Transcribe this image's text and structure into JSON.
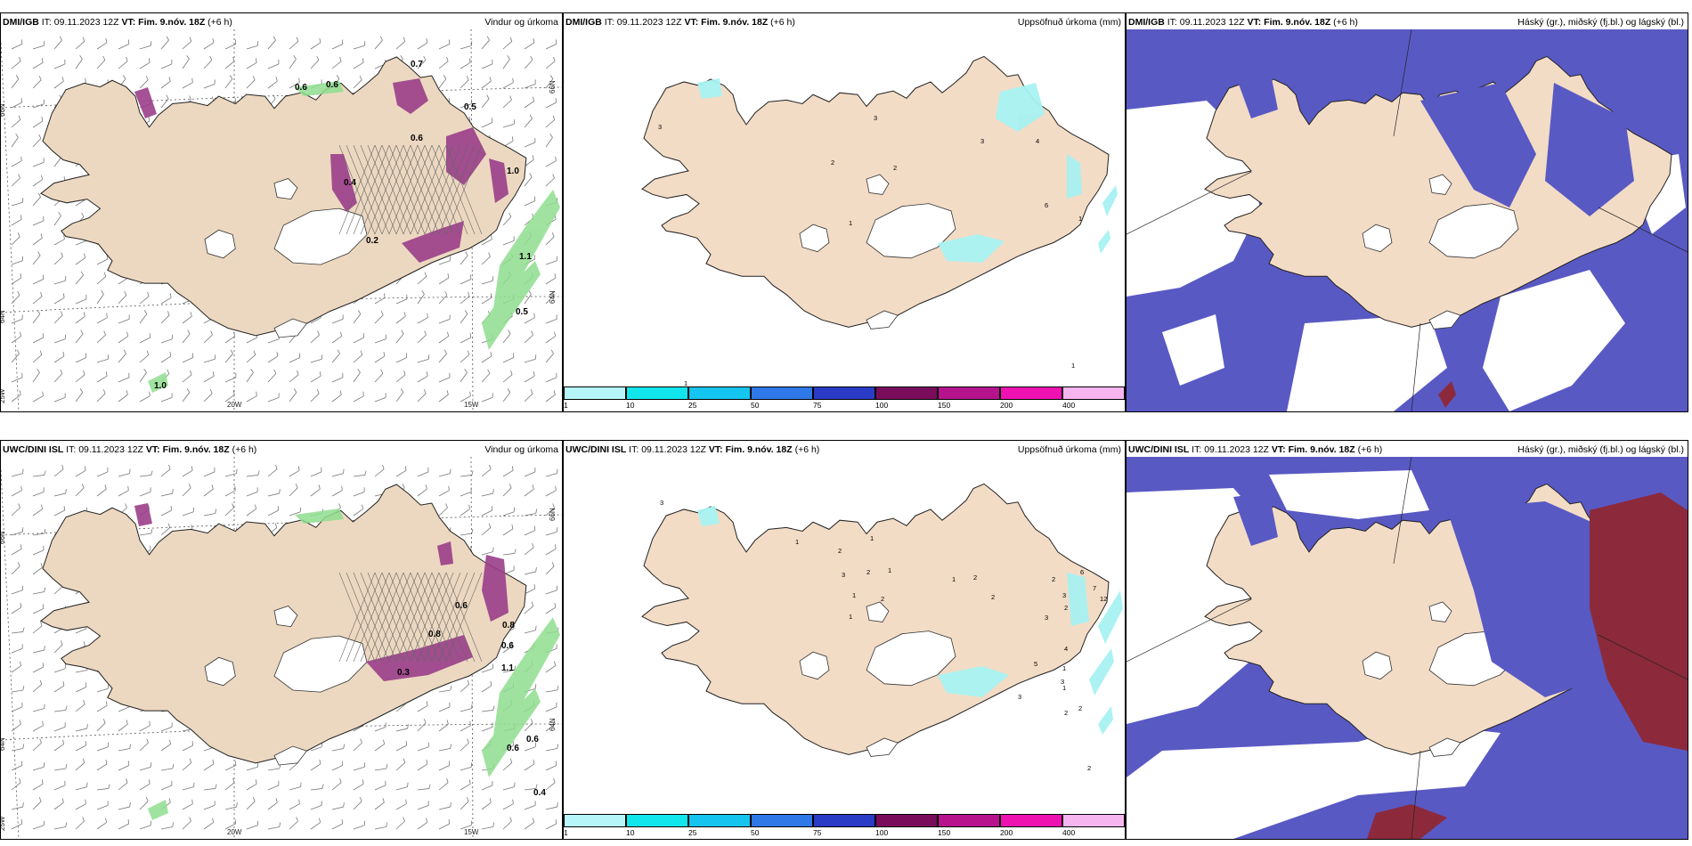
{
  "common": {
    "it_label": "IT:",
    "it_value": "09.11.2023 12Z",
    "vt_text": "VT: Fim. 9.nóv. 18Z",
    "lead": "(+6 h)"
  },
  "rows": [
    {
      "source": "DMI/IGB",
      "panels": [
        {
          "kind": "wind",
          "title_right": "Vindur og úrkoma",
          "grid_labels": {
            "n66_left": "66N",
            "n66_right": "66N",
            "n64_left": "64N",
            "n64_right": "64N",
            "w25": "25W",
            "w20": "20W",
            "w15": "15W"
          },
          "value_labels": [
            "0.6",
            "0.6",
            "0.7",
            "1.0",
            "0.4",
            "0.5",
            "1.1",
            "1.0",
            "0.2",
            "0.6",
            "0.5"
          ]
        },
        {
          "kind": "precip",
          "title_right": "Uppsöfnuð úrkoma (mm)",
          "value_labels": [
            "3",
            "3",
            "2",
            "2",
            "3",
            "4",
            "6",
            "1",
            "1",
            "1",
            "1"
          ]
        },
        {
          "kind": "cloud",
          "title_right": "Háský (gr.), miðský (fj.bl.) og lágský (bl.)"
        }
      ]
    },
    {
      "source": "UWC/DINI ISL",
      "panels": [
        {
          "kind": "wind",
          "title_right": "Vindur og úrkoma",
          "grid_labels": {
            "n66_left": "66N",
            "n66_right": "66N",
            "n64_left": "64N",
            "n64_right": "64N",
            "w25": "25W",
            "w20": "20W",
            "w15": "15W"
          },
          "value_labels": [
            "0.6",
            "1.1",
            "0.6",
            "0.8",
            "0.3",
            "0.8",
            "0.6",
            "0.6",
            "0.4"
          ]
        },
        {
          "kind": "precip",
          "title_right": "Uppsöfnuð úrkoma (mm)",
          "value_labels": [
            "3",
            "1",
            "2",
            "2",
            "1",
            "1",
            "2",
            "2",
            "2",
            "3",
            "2",
            "6",
            "3",
            "7",
            "4",
            "5",
            "3",
            "3",
            "1",
            "2",
            "1",
            "2",
            "1",
            "1",
            "3",
            "12",
            "2",
            "1",
            "2"
          ]
        },
        {
          "kind": "cloud",
          "title_right": "Háský (gr.), miðský (fj.bl.) og lágský (bl.)"
        }
      ]
    }
  ],
  "precip_legend": {
    "ticks": [
      "1",
      "10",
      "25",
      "50",
      "75",
      "100",
      "150",
      "200",
      "400"
    ],
    "colors": [
      "#b6f6f8",
      "#11e6ec",
      "#15c5ef",
      "#2f78e8",
      "#2a3bc6",
      "#7a0c5c",
      "#b6138d",
      "#ee12b0",
      "#f7b5ef"
    ]
  },
  "colors": {
    "land": "#f3dcc6",
    "land_wind": "#ecd8c0",
    "sea": "#ffffff",
    "precip_light": "#a8f2f2",
    "precip_heavy": "#9b3e8a",
    "precip_green": "#8fde8f",
    "cloud_mid": "#5959c4",
    "cloud_low": "#3d6ee8",
    "cloud_high": "#8c2a3c"
  }
}
